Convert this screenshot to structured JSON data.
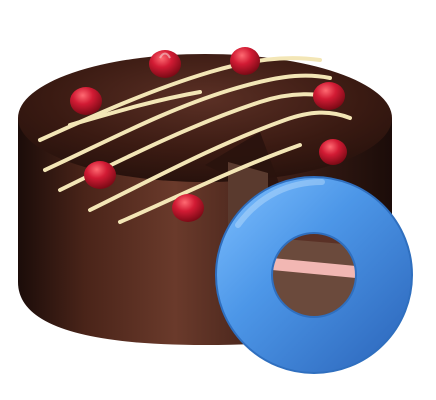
{
  "scene": {
    "subject": "chocolate-cake-with-missing-slice",
    "overlay": "ring-donut-shape",
    "colors": {
      "background": "#ffffff",
      "cake_side_dark": "#2a120d",
      "cake_side_mid": "#4b241a",
      "cake_side_light": "#6a3a2b",
      "cake_top": "#3a1a12",
      "icing_drizzle": "#f3e6b6",
      "strawberry": "#c8142c",
      "strawberry_highlight": "#ff6a72",
      "ring_fill": "#4d97e8",
      "ring_stroke": "#2f6fbf",
      "cake_interior": "#6b4a3c",
      "cream_layer": "#f2b7b3"
    }
  }
}
